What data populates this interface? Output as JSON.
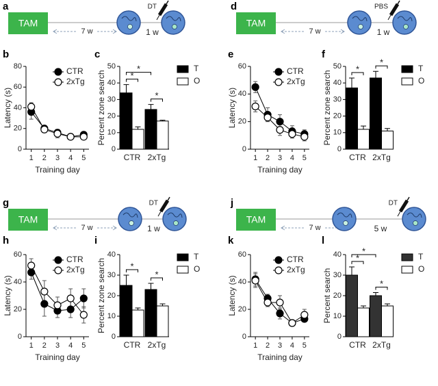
{
  "schematics": [
    {
      "panel": "a",
      "box": "TAM",
      "interval": "7 w",
      "agent": "DT",
      "wait": "1 w"
    },
    {
      "panel": "d",
      "box": "TAM",
      "interval": "7 w",
      "agent": "PBS",
      "wait": "1 w"
    },
    {
      "panel": "g",
      "box": "TAM",
      "interval": "7 w",
      "agent": "DT",
      "wait": "1 w"
    },
    {
      "panel": "j",
      "box": "TAM",
      "interval": "7 w",
      "agent": "DT",
      "wait": "5 w"
    }
  ],
  "chart_data": [
    {
      "panel": "b",
      "type": "line",
      "xlabel": "Training day",
      "ylabel": "Latency (s)",
      "x": [
        1,
        2,
        3,
        4,
        5
      ],
      "xlim": [
        0.6,
        5.4
      ],
      "xticks": [
        1,
        2,
        3,
        4,
        5
      ],
      "ylim": [
        0,
        80
      ],
      "yticks": [
        0,
        20,
        40,
        60,
        80
      ],
      "legend": "upper right",
      "series": [
        {
          "name": "CTR",
          "color": "#000000",
          "values": [
            36,
            20,
            16,
            12,
            14
          ],
          "errors": [
            7,
            3,
            3,
            2,
            2
          ]
        },
        {
          "name": "2xTg",
          "color": "#ffffff",
          "values": [
            41,
            19,
            15,
            12,
            12
          ],
          "errors": [
            4,
            3,
            4,
            2,
            2
          ]
        }
      ]
    },
    {
      "panel": "c",
      "type": "bar",
      "ylabel": "Percent zone search",
      "categories": [
        "CTR",
        "2xTg"
      ],
      "ylim": [
        0,
        50
      ],
      "yticks": [
        0,
        10,
        20,
        30,
        40,
        50
      ],
      "legend": "right",
      "series": [
        {
          "name": "T",
          "color": "#000000",
          "values": [
            34,
            24
          ],
          "errors": [
            5,
            3
          ]
        },
        {
          "name": "O",
          "color": "#ffffff",
          "values": [
            12,
            17
          ],
          "errors": [
            1.5,
            0.5
          ]
        }
      ],
      "annotations": [
        "*",
        "*",
        "*"
      ]
    },
    {
      "panel": "e",
      "type": "line",
      "xlabel": "Training day",
      "ylabel": "Latency (s)",
      "x": [
        1,
        2,
        3,
        4,
        5
      ],
      "xlim": [
        0.6,
        5.4
      ],
      "xticks": [
        1,
        2,
        3,
        4,
        5
      ],
      "ylim": [
        0,
        60
      ],
      "yticks": [
        0,
        20,
        40,
        60
      ],
      "legend": "upper right",
      "series": [
        {
          "name": "CTR",
          "color": "#000000",
          "values": [
            45,
            25,
            20,
            13,
            11
          ],
          "errors": [
            4,
            5,
            5,
            4,
            3
          ]
        },
        {
          "name": "2xTg",
          "color": "#ffffff",
          "values": [
            31,
            23,
            14,
            11,
            9
          ],
          "errors": [
            4,
            3,
            4,
            3,
            3
          ]
        }
      ]
    },
    {
      "panel": "f",
      "type": "bar",
      "ylabel": "Percent zone search",
      "categories": [
        "CTR",
        "2xTg"
      ],
      "ylim": [
        0,
        50
      ],
      "yticks": [
        0,
        10,
        20,
        30,
        40,
        50
      ],
      "legend": "right",
      "series": [
        {
          "name": "T",
          "color": "#000000",
          "values": [
            37,
            43
          ],
          "errors": [
            6,
            4
          ]
        },
        {
          "name": "O",
          "color": "#ffffff",
          "values": [
            12,
            11
          ],
          "errors": [
            2,
            1.5
          ]
        }
      ],
      "annotations": [
        "*",
        "*"
      ]
    },
    {
      "panel": "h",
      "type": "line",
      "xlabel": "Training day",
      "ylabel": "Latency (s)",
      "x": [
        1,
        2,
        3,
        4,
        5
      ],
      "xlim": [
        0.6,
        5.4
      ],
      "xticks": [
        1,
        2,
        3,
        4,
        5
      ],
      "ylim": [
        0,
        60
      ],
      "yticks": [
        0,
        20,
        40,
        60
      ],
      "legend": "upper right",
      "series": [
        {
          "name": "CTR",
          "color": "#000000",
          "values": [
            47,
            24,
            19,
            20,
            28
          ],
          "errors": [
            5,
            9,
            5,
            6,
            7
          ]
        },
        {
          "name": "2xTg",
          "color": "#ffffff",
          "values": [
            52,
            33,
            23,
            28,
            16
          ],
          "errors": [
            5,
            8,
            6,
            7,
            6
          ]
        }
      ]
    },
    {
      "panel": "i",
      "type": "bar",
      "ylabel": "Percent zone search",
      "categories": [
        "CTR",
        "2xTg"
      ],
      "ylim": [
        0,
        40
      ],
      "yticks": [
        0,
        10,
        20,
        30,
        40
      ],
      "legend": "right",
      "series": [
        {
          "name": "T",
          "color": "#000000",
          "values": [
            25,
            23
          ],
          "errors": [
            5,
            3
          ]
        },
        {
          "name": "O",
          "color": "#ffffff",
          "values": [
            13,
            15
          ],
          "errors": [
            1,
            1
          ]
        }
      ],
      "annotations": [
        "*",
        "*"
      ]
    },
    {
      "panel": "k",
      "type": "line",
      "xlabel": "Training day",
      "ylabel": "Latency (s)",
      "x": [
        1,
        2,
        3,
        4,
        5
      ],
      "xlim": [
        0.6,
        5.4
      ],
      "xticks": [
        1,
        2,
        3,
        4,
        5
      ],
      "ylim": [
        0,
        60
      ],
      "yticks": [
        0,
        20,
        40,
        60
      ],
      "legend": "upper right",
      "series": [
        {
          "name": "CTR",
          "color": "#000000",
          "values": [
            42,
            28,
            17,
            10,
            13
          ],
          "errors": [
            5,
            3,
            4,
            1,
            2
          ]
        },
        {
          "name": "2xTg",
          "color": "#ffffff",
          "values": [
            41,
            25,
            25,
            10,
            16
          ],
          "errors": [
            5,
            3,
            5,
            1,
            4
          ]
        }
      ]
    },
    {
      "panel": "l",
      "type": "bar",
      "ylabel": "Percent search",
      "categories": [
        "CTR",
        "2xTg"
      ],
      "ylim": [
        0,
        40
      ],
      "yticks": [
        0,
        10,
        20,
        30,
        40
      ],
      "legend": "right",
      "series": [
        {
          "name": "T",
          "color": "#333333",
          "values": [
            30,
            20
          ],
          "errors": [
            4,
            1.5
          ]
        },
        {
          "name": "O",
          "color": "#ffffff",
          "values": [
            14,
            15
          ],
          "errors": [
            1,
            1
          ]
        }
      ],
      "annotations": [
        "*",
        "*",
        "*"
      ]
    }
  ]
}
